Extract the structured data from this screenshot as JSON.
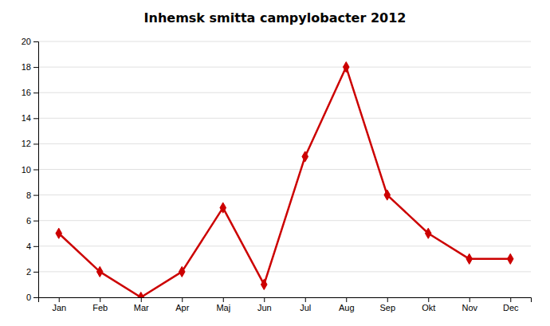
{
  "chart_data": {
    "type": "line",
    "title": "Inhemsk smitta campylobacter  2012",
    "categories": [
      "Jan",
      "Feb",
      "Mar",
      "Apr",
      "Maj",
      "Jun",
      "Jul",
      "Aug",
      "Sep",
      "Okt",
      "Nov",
      "Dec"
    ],
    "values": [
      5,
      2,
      0,
      2,
      7,
      1,
      11,
      18,
      8,
      5,
      3,
      3
    ],
    "color": "#cc0000",
    "marker": "diamond",
    "ylim": [
      0,
      20
    ],
    "yticks": [
      0,
      2,
      4,
      6,
      8,
      10,
      12,
      14,
      16,
      18,
      20
    ],
    "grid": true
  }
}
